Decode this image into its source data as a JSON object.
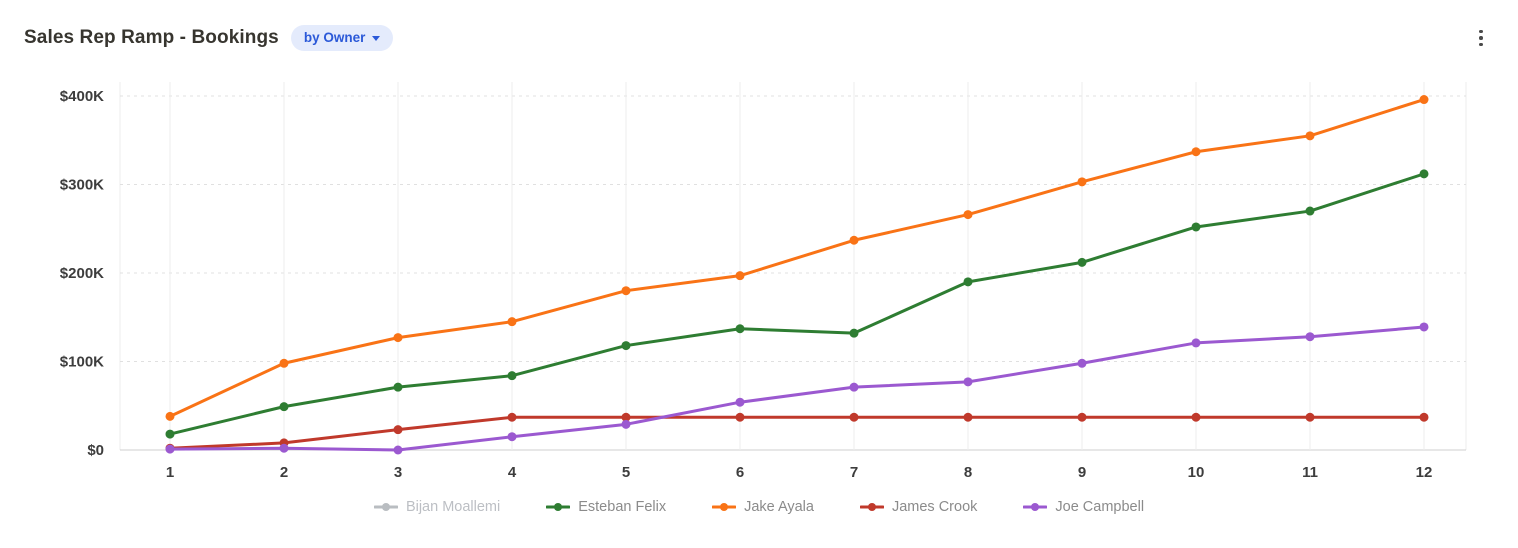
{
  "header": {
    "title": "Sales Rep Ramp - Bookings",
    "filter_label": "by Owner"
  },
  "chart_data": {
    "type": "line",
    "title": "Sales Rep Ramp - Bookings",
    "xlabel": "",
    "ylabel": "",
    "x": [
      "1",
      "2",
      "3",
      "4",
      "5",
      "6",
      "7",
      "8",
      "9",
      "10",
      "11",
      "12"
    ],
    "ylim": [
      0,
      400000
    ],
    "ytick_values": [
      0,
      100000,
      200000,
      300000,
      400000
    ],
    "ytick_labels": [
      "$0",
      "$100K",
      "$200K",
      "$300K",
      "$400K"
    ],
    "grid": true,
    "legend_position": "bottom",
    "series": [
      {
        "name": "Bijan Moallemi",
        "color": "#a8adb3",
        "disabled": true,
        "values": []
      },
      {
        "name": "Esteban Felix",
        "color": "#2e7d32",
        "disabled": false,
        "values": [
          18000,
          49000,
          71000,
          84000,
          118000,
          137000,
          132000,
          190000,
          212000,
          252000,
          270000,
          312000
        ]
      },
      {
        "name": "Jake Ayala",
        "color": "#f97316",
        "disabled": false,
        "values": [
          38000,
          98000,
          127000,
          145000,
          180000,
          197000,
          237000,
          266000,
          303000,
          337000,
          355000,
          396000
        ]
      },
      {
        "name": "James Crook",
        "color": "#c0392b",
        "disabled": false,
        "values": [
          2000,
          8000,
          23000,
          37000,
          37000,
          37000,
          37000,
          37000,
          37000,
          37000,
          37000,
          37000
        ]
      },
      {
        "name": "Joe Campbell",
        "color": "#9b59d0",
        "disabled": false,
        "values": [
          1000,
          2000,
          0,
          15000,
          29000,
          54000,
          71000,
          77000,
          98000,
          121000,
          128000,
          139000
        ]
      }
    ]
  }
}
